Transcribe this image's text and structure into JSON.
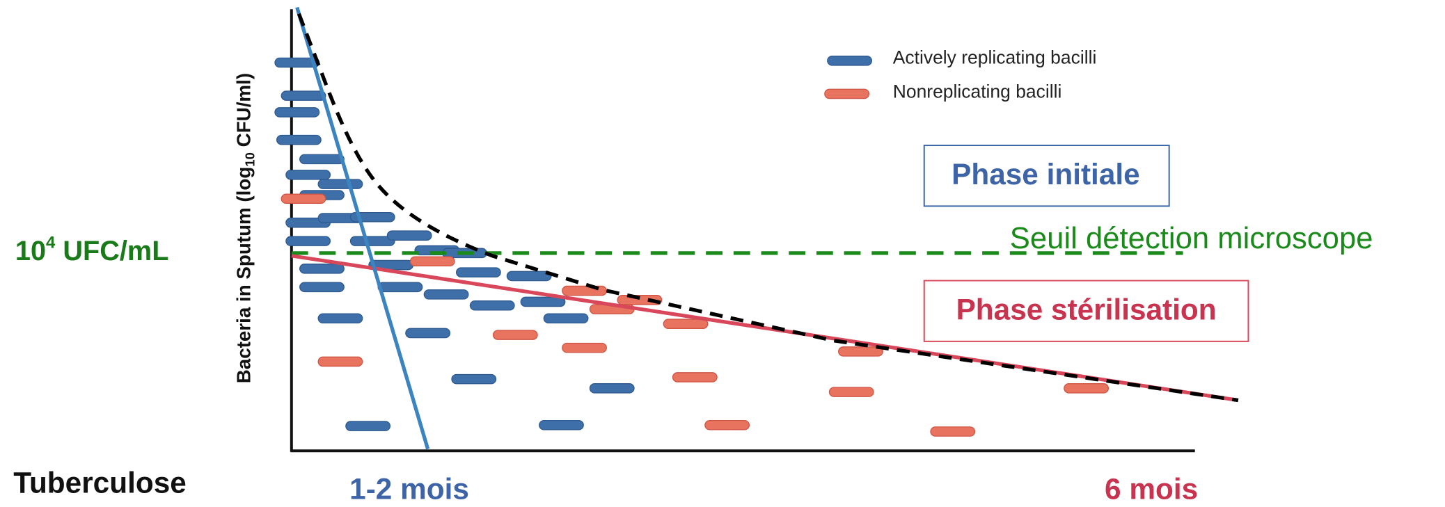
{
  "legend": {
    "items": [
      {
        "label": "Actively replicating bacilli"
      },
      {
        "label": "Nonreplicating bacilli"
      }
    ]
  },
  "y_axis_label": {
    "before": "Bacteria in Sputum (log",
    "subscript": "10",
    "after": " CFU/ml)"
  },
  "phase_initial": "Phase initiale",
  "threshold": "Seuil détection microscope",
  "phase_sterilization": "Phase stérilisation",
  "threshold_level": {
    "base": "10",
    "superscript": "4",
    "unit": " UFC/mL"
  },
  "disease": "Tuberculose",
  "time_short": "1-2 mois",
  "time_long": "6 mois"
}
